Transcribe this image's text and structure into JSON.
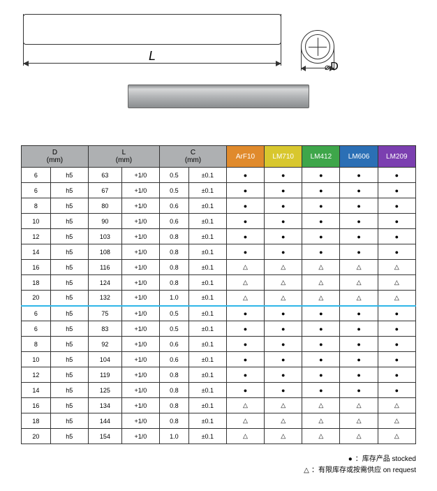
{
  "diagram": {
    "length_label": "L",
    "diameter_label": "D"
  },
  "table": {
    "headers": {
      "D": "D",
      "D_unit": "(mm)",
      "L": "L",
      "L_unit": "(mm)",
      "C": "C",
      "C_unit": "(mm)"
    },
    "materials": [
      {
        "name": "ArF10",
        "color": "#e08a2c"
      },
      {
        "name": "LM710",
        "color": "#d8c72e"
      },
      {
        "name": "LM412",
        "color": "#3ea64a"
      },
      {
        "name": "LM606",
        "color": "#2b6fb5"
      },
      {
        "name": "LM209",
        "color": "#7b3fb0"
      }
    ],
    "col_widths": {
      "D1": 40,
      "D2": 52,
      "L1": 46,
      "L2": 52,
      "C1": 40,
      "C2": 52,
      "mat": 52
    },
    "symbols": {
      "stocked": "●",
      "request": "△"
    },
    "rows": [
      {
        "D": "6",
        "Dtol": "h5",
        "L": "63",
        "Ltol": "+1/0",
        "C": "0.5",
        "Ctol": "±0.1",
        "avail": [
          "s",
          "s",
          "s",
          "s",
          "s"
        ]
      },
      {
        "D": "6",
        "Dtol": "h5",
        "L": "67",
        "Ltol": "+1/0",
        "C": "0.5",
        "Ctol": "±0.1",
        "avail": [
          "s",
          "s",
          "s",
          "s",
          "s"
        ]
      },
      {
        "D": "8",
        "Dtol": "h5",
        "L": "80",
        "Ltol": "+1/0",
        "C": "0.6",
        "Ctol": "±0.1",
        "avail": [
          "s",
          "s",
          "s",
          "s",
          "s"
        ]
      },
      {
        "D": "10",
        "Dtol": "h5",
        "L": "90",
        "Ltol": "+1/0",
        "C": "0.6",
        "Ctol": "±0.1",
        "avail": [
          "s",
          "s",
          "s",
          "s",
          "s"
        ]
      },
      {
        "D": "12",
        "Dtol": "h5",
        "L": "103",
        "Ltol": "+1/0",
        "C": "0.8",
        "Ctol": "±0.1",
        "avail": [
          "s",
          "s",
          "s",
          "s",
          "s"
        ]
      },
      {
        "D": "14",
        "Dtol": "h5",
        "L": "108",
        "Ltol": "+1/0",
        "C": "0.8",
        "Ctol": "±0.1",
        "avail": [
          "s",
          "s",
          "s",
          "s",
          "s"
        ]
      },
      {
        "D": "16",
        "Dtol": "h5",
        "L": "116",
        "Ltol": "+1/0",
        "C": "0.8",
        "Ctol": "±0.1",
        "avail": [
          "r",
          "r",
          "r",
          "r",
          "r"
        ]
      },
      {
        "D": "18",
        "Dtol": "h5",
        "L": "124",
        "Ltol": "+1/0",
        "C": "0.8",
        "Ctol": "±0.1",
        "avail": [
          "r",
          "r",
          "r",
          "r",
          "r"
        ]
      },
      {
        "D": "20",
        "Dtol": "h5",
        "L": "132",
        "Ltol": "+1/0",
        "C": "1.0",
        "Ctol": "±0.1",
        "avail": [
          "r",
          "r",
          "r",
          "r",
          "r"
        ]
      },
      {
        "D": "6",
        "Dtol": "h5",
        "L": "75",
        "Ltol": "+1/0",
        "C": "0.5",
        "Ctol": "±0.1",
        "avail": [
          "s",
          "s",
          "s",
          "s",
          "s"
        ],
        "sep": true
      },
      {
        "D": "6",
        "Dtol": "h5",
        "L": "83",
        "Ltol": "+1/0",
        "C": "0.5",
        "Ctol": "±0.1",
        "avail": [
          "s",
          "s",
          "s",
          "s",
          "s"
        ]
      },
      {
        "D": "8",
        "Dtol": "h5",
        "L": "92",
        "Ltol": "+1/0",
        "C": "0.6",
        "Ctol": "±0.1",
        "avail": [
          "s",
          "s",
          "s",
          "s",
          "s"
        ]
      },
      {
        "D": "10",
        "Dtol": "h5",
        "L": "104",
        "Ltol": "+1/0",
        "C": "0.6",
        "Ctol": "±0.1",
        "avail": [
          "s",
          "s",
          "s",
          "s",
          "s"
        ]
      },
      {
        "D": "12",
        "Dtol": "h5",
        "L": "119",
        "Ltol": "+1/0",
        "C": "0.8",
        "Ctol": "±0.1",
        "avail": [
          "s",
          "s",
          "s",
          "s",
          "s"
        ]
      },
      {
        "D": "14",
        "Dtol": "h5",
        "L": "125",
        "Ltol": "+1/0",
        "C": "0.8",
        "Ctol": "±0.1",
        "avail": [
          "s",
          "s",
          "s",
          "s",
          "s"
        ]
      },
      {
        "D": "16",
        "Dtol": "h5",
        "L": "134",
        "Ltol": "+1/0",
        "C": "0.8",
        "Ctol": "±0.1",
        "avail": [
          "r",
          "r",
          "r",
          "r",
          "r"
        ]
      },
      {
        "D": "18",
        "Dtol": "h5",
        "L": "144",
        "Ltol": "+1/0",
        "C": "0.8",
        "Ctol": "±0.1",
        "avail": [
          "r",
          "r",
          "r",
          "r",
          "r"
        ]
      },
      {
        "D": "20",
        "Dtol": "h5",
        "L": "154",
        "Ltol": "+1/0",
        "C": "1.0",
        "Ctol": "±0.1",
        "avail": [
          "r",
          "r",
          "r",
          "r",
          "r"
        ]
      }
    ]
  },
  "legend": {
    "stocked_mark": "●",
    "stocked_text": "：库存产品 stocked",
    "request_mark": "△",
    "request_text": "：有限库存或按需供应 on request"
  }
}
